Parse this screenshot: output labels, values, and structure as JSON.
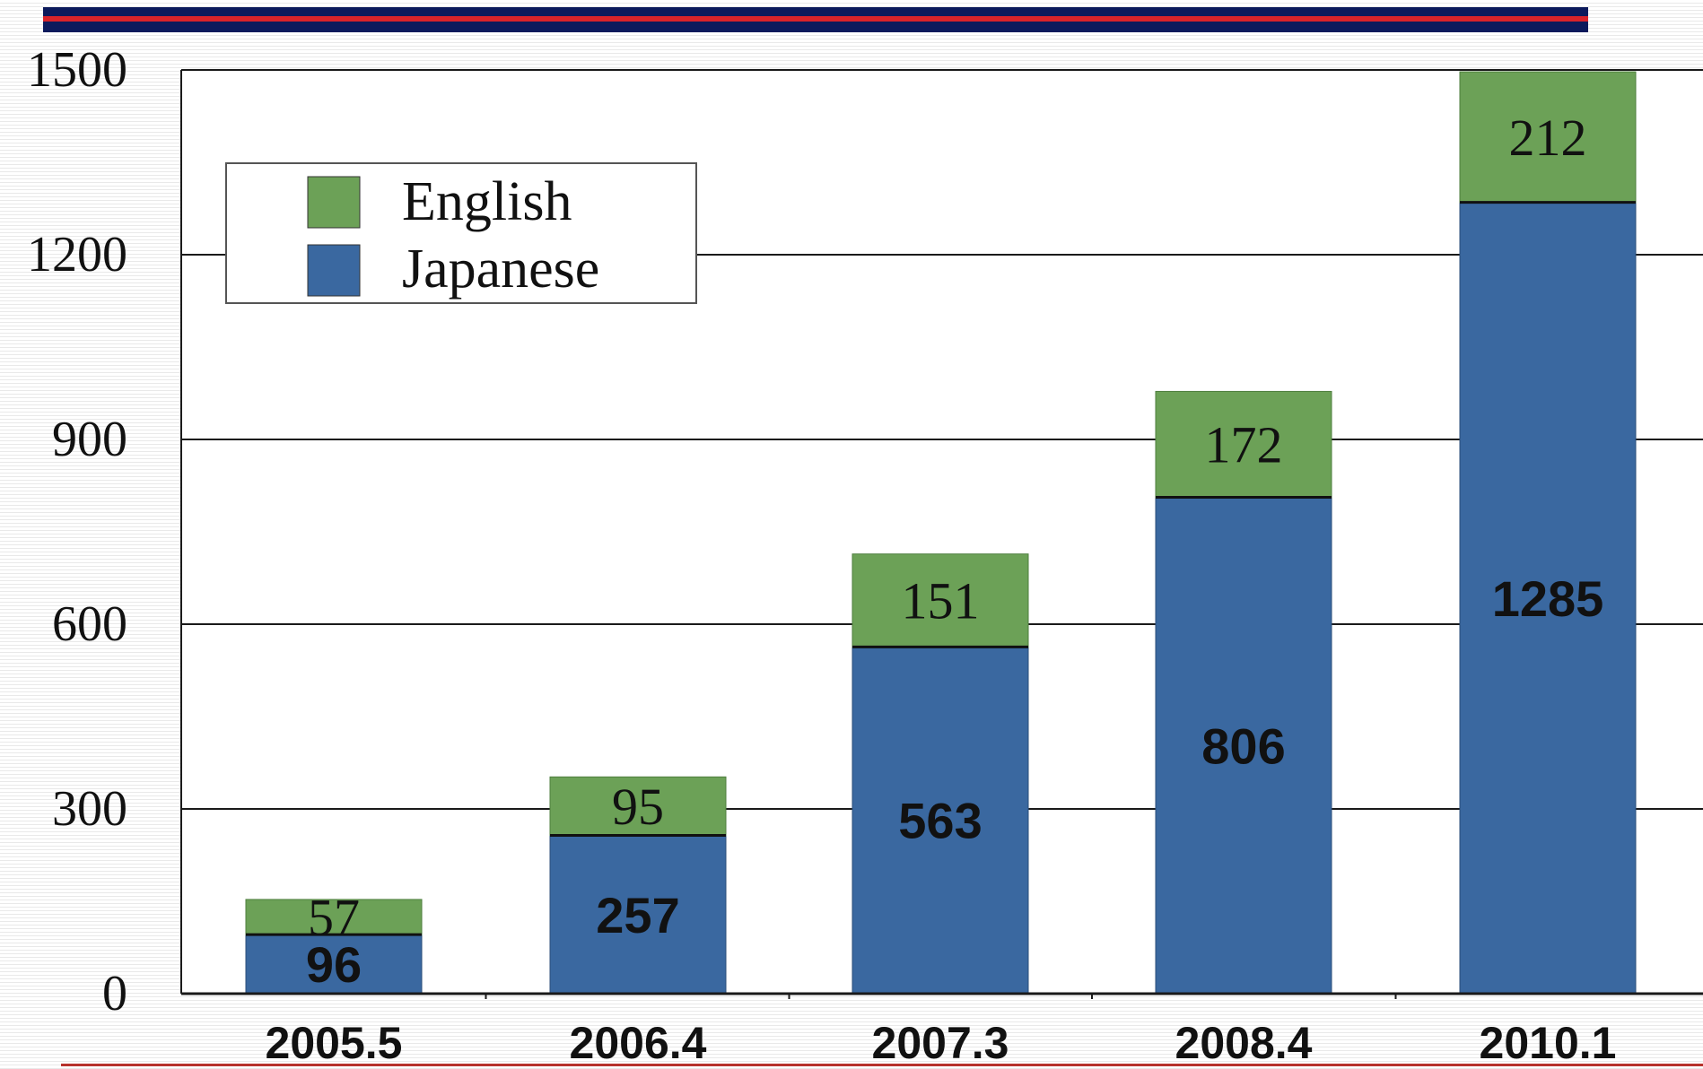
{
  "colors": {
    "english": "#6ca157",
    "japanese": "#3a68a0",
    "top_bar_navy": "#0c1a5c",
    "top_bar_red": "#d8232a"
  },
  "chart_data": {
    "type": "bar",
    "stacked": true,
    "categories": [
      "2005.5",
      "2006.4",
      "2007.3",
      "2008.4",
      "2010.1"
    ],
    "series": [
      {
        "name": "Japanese",
        "values": [
          96,
          257,
          563,
          806,
          1285
        ]
      },
      {
        "name": "English",
        "values": [
          57,
          95,
          151,
          172,
          212
        ]
      }
    ],
    "ylim": [
      0,
      1500
    ],
    "y_ticks": [
      0,
      300,
      600,
      900,
      1200,
      1500
    ],
    "grid": true,
    "legend_position": "top-left",
    "legend_order": [
      "English",
      "Japanese"
    ]
  }
}
